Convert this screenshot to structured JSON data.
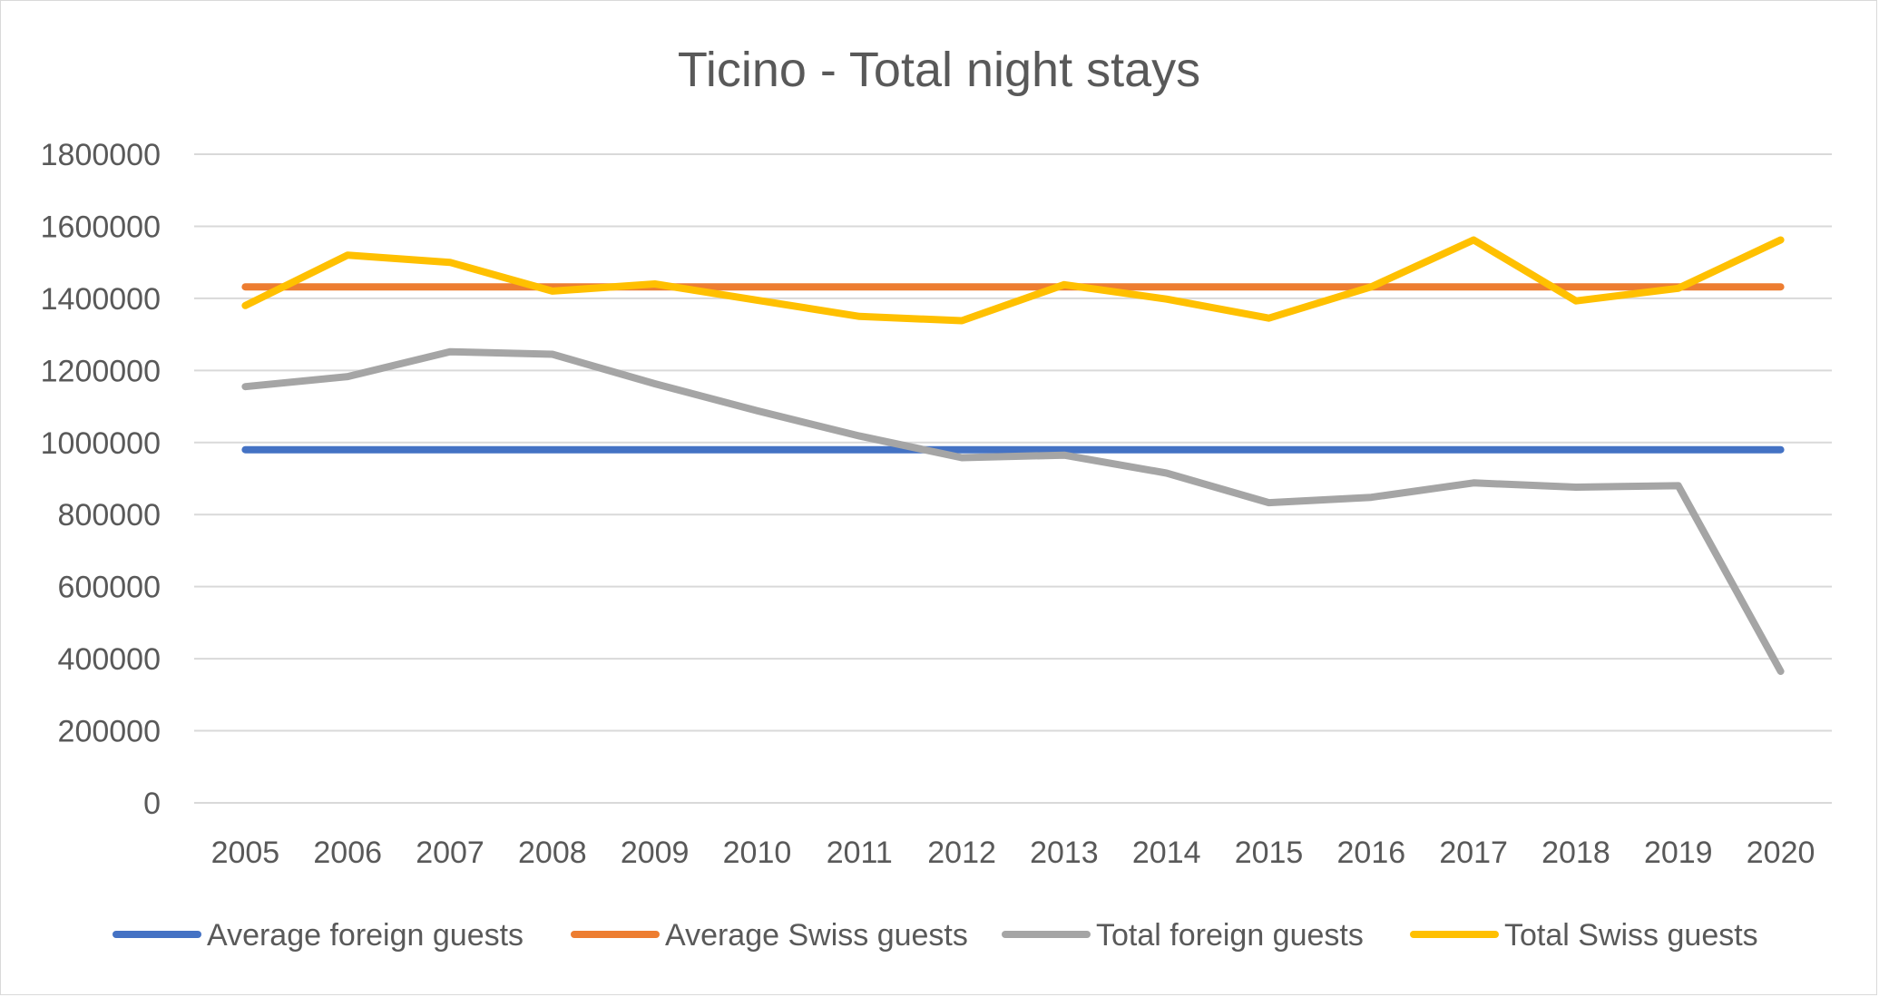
{
  "chart_data": {
    "type": "line",
    "title": "Ticino - Total night stays",
    "xlabel": "",
    "ylabel": "",
    "categories": [
      "2005",
      "2006",
      "2007",
      "2008",
      "2009",
      "2010",
      "2011",
      "2012",
      "2013",
      "2014",
      "2015",
      "2016",
      "2017",
      "2018",
      "2019",
      "2020"
    ],
    "ylim": [
      0,
      1800000
    ],
    "yticks": [
      0,
      200000,
      400000,
      600000,
      800000,
      1000000,
      1200000,
      1400000,
      1600000,
      1800000
    ],
    "ytick_labels": [
      "0",
      "200000",
      "400000",
      "600000",
      "800000",
      "1000000",
      "1200000",
      "1400000",
      "1600000",
      "1800000"
    ],
    "grid": true,
    "legend_position": "bottom",
    "series": [
      {
        "name": "Average foreign guests",
        "color": "#4472C4",
        "values": [
          980000,
          980000,
          980000,
          980000,
          980000,
          980000,
          980000,
          980000,
          980000,
          980000,
          980000,
          980000,
          980000,
          980000,
          980000,
          980000
        ]
      },
      {
        "name": "Average Swiss guests",
        "color": "#ED7D31",
        "values": [
          1432000,
          1432000,
          1432000,
          1432000,
          1432000,
          1432000,
          1432000,
          1432000,
          1432000,
          1432000,
          1432000,
          1432000,
          1432000,
          1432000,
          1432000,
          1432000
        ]
      },
      {
        "name": "Total foreign guests",
        "color": "#A5A5A5",
        "values": [
          1155000,
          1183000,
          1252000,
          1245000,
          1163000,
          1088000,
          1018000,
          958000,
          965000,
          915000,
          833000,
          848000,
          888000,
          876000,
          880000,
          365000
        ]
      },
      {
        "name": "Total Swiss guests",
        "color": "#FFC000",
        "values": [
          1380000,
          1520000,
          1500000,
          1420000,
          1440000,
          1395000,
          1350000,
          1338000,
          1438000,
          1398000,
          1345000,
          1432000,
          1562000,
          1393000,
          1428000,
          1562000
        ]
      }
    ]
  }
}
